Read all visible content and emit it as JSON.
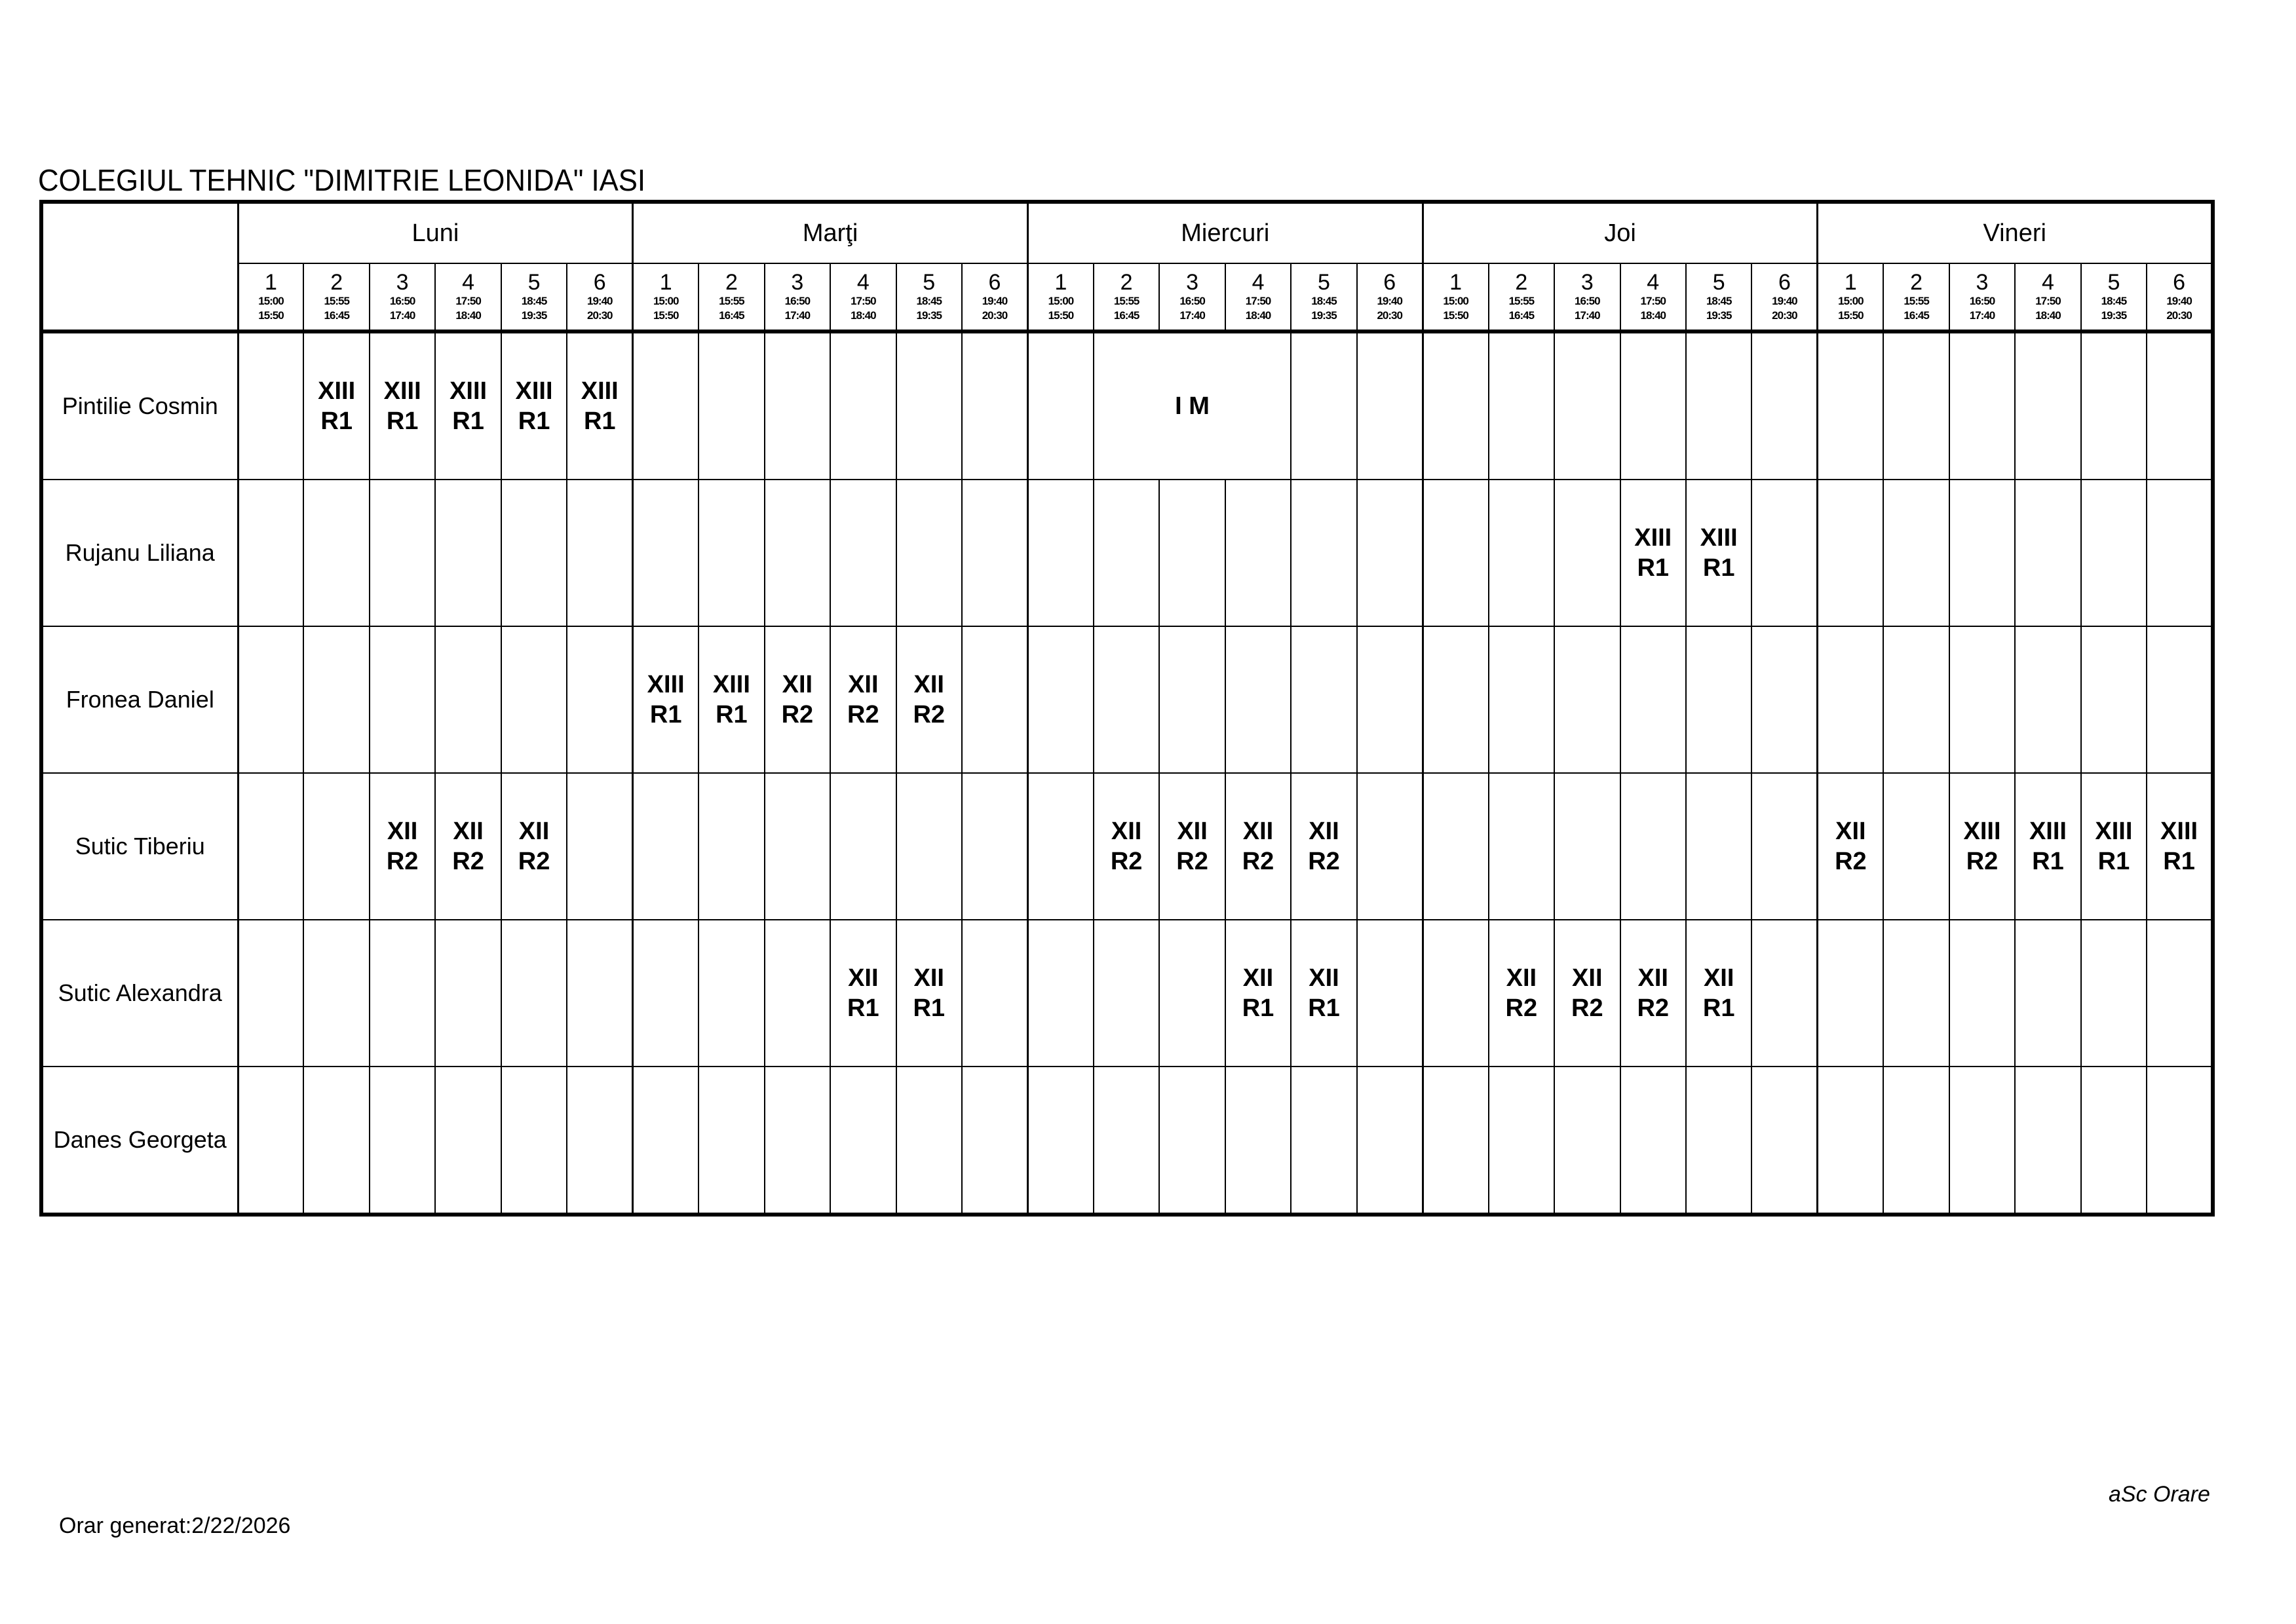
{
  "title": "COLEGIUL TEHNIC \"DIMITRIE LEONIDA\" IASI",
  "days": [
    "Luni",
    "Marţi",
    "Miercuri",
    "Joi",
    "Vineri"
  ],
  "periods": [
    {
      "n": "1",
      "start": "15:00",
      "end": "15:50"
    },
    {
      "n": "2",
      "start": "15:55",
      "end": "16:45"
    },
    {
      "n": "3",
      "start": "16:50",
      "end": "17:40"
    },
    {
      "n": "4",
      "start": "17:50",
      "end": "18:40"
    },
    {
      "n": "5",
      "start": "18:45",
      "end": "19:35"
    },
    {
      "n": "6",
      "start": "19:40",
      "end": "20:30"
    }
  ],
  "rows": [
    {
      "name": "Pintilie Cosmin",
      "cells": [
        null,
        {
          "l1": "XIII",
          "l2": "R1"
        },
        {
          "l1": "XIII",
          "l2": "R1"
        },
        {
          "l1": "XIII",
          "l2": "R1"
        },
        {
          "l1": "XIII",
          "l2": "R1"
        },
        {
          "l1": "XIII",
          "l2": "R1"
        },
        null,
        null,
        null,
        null,
        null,
        null,
        null,
        {
          "l1": "I M",
          "span": 3
        },
        "merged",
        "merged",
        null,
        null,
        null,
        null,
        null,
        null,
        null,
        null,
        null,
        null,
        null,
        null,
        null,
        null
      ]
    },
    {
      "name": "Rujanu Liliana",
      "cells": [
        null,
        null,
        null,
        null,
        null,
        null,
        null,
        null,
        null,
        null,
        null,
        null,
        null,
        null,
        null,
        null,
        null,
        null,
        null,
        null,
        null,
        {
          "l1": "XIII",
          "l2": "R1"
        },
        {
          "l1": "XIII",
          "l2": "R1"
        },
        null,
        null,
        null,
        null,
        null,
        null,
        null
      ]
    },
    {
      "name": "Fronea Daniel",
      "cells": [
        null,
        null,
        null,
        null,
        null,
        null,
        {
          "l1": "XIII",
          "l2": "R1"
        },
        {
          "l1": "XIII",
          "l2": "R1"
        },
        {
          "l1": "XII",
          "l2": "R2"
        },
        {
          "l1": "XII",
          "l2": "R2"
        },
        {
          "l1": "XII",
          "l2": "R2"
        },
        null,
        null,
        null,
        null,
        null,
        null,
        null,
        null,
        null,
        null,
        null,
        null,
        null,
        null,
        null,
        null,
        null,
        null,
        null
      ]
    },
    {
      "name": "Sutic Tiberiu",
      "cells": [
        null,
        null,
        {
          "l1": "XII",
          "l2": "R2"
        },
        {
          "l1": "XII",
          "l2": "R2"
        },
        {
          "l1": "XII",
          "l2": "R2"
        },
        null,
        null,
        null,
        null,
        null,
        null,
        null,
        null,
        {
          "l1": "XII",
          "l2": "R2"
        },
        {
          "l1": "XII",
          "l2": "R2"
        },
        {
          "l1": "XII",
          "l2": "R2"
        },
        {
          "l1": "XII",
          "l2": "R2"
        },
        null,
        null,
        null,
        null,
        null,
        null,
        null,
        {
          "l1": "XII",
          "l2": "R2"
        },
        null,
        {
          "l1": "XIII",
          "l2": "R2"
        },
        {
          "l1": "XIII",
          "l2": "R1"
        },
        {
          "l1": "XIII",
          "l2": "R1"
        },
        {
          "l1": "XIII",
          "l2": "R1"
        }
      ]
    },
    {
      "name": "Sutic Alexandra",
      "cells": [
        null,
        null,
        null,
        null,
        null,
        null,
        null,
        null,
        null,
        {
          "l1": "XII",
          "l2": "R1"
        },
        {
          "l1": "XII",
          "l2": "R1"
        },
        null,
        null,
        null,
        null,
        {
          "l1": "XII",
          "l2": "R1"
        },
        {
          "l1": "XII",
          "l2": "R1"
        },
        null,
        null,
        {
          "l1": "XII",
          "l2": "R2"
        },
        {
          "l1": "XII",
          "l2": "R2"
        },
        {
          "l1": "XII",
          "l2": "R2"
        },
        {
          "l1": "XII",
          "l2": "R1"
        },
        null,
        null,
        null,
        null,
        null,
        null,
        null
      ]
    },
    {
      "name": "Danes Georgeta",
      "cells": [
        null,
        null,
        null,
        null,
        null,
        null,
        null,
        null,
        null,
        null,
        null,
        null,
        null,
        null,
        null,
        null,
        null,
        null,
        null,
        null,
        null,
        null,
        null,
        null,
        null,
        null,
        null,
        null,
        null,
        null
      ]
    }
  ],
  "footer": {
    "generated": "Orar generat:2/22/2026",
    "brand": "aSc Orare"
  }
}
